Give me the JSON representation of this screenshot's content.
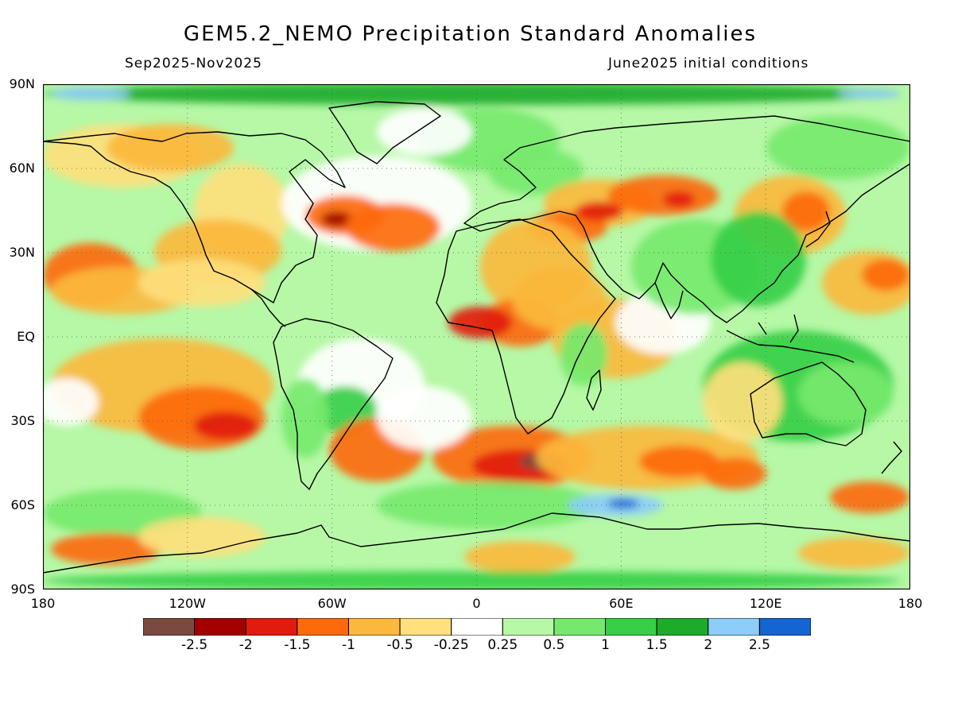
{
  "header": {
    "title": "GEM5.2_NEMO Precipitation Standard Anomalies",
    "period": "Sep2025-Nov2025",
    "init": "June2025 initial conditions"
  },
  "map": {
    "variable": "Precipitation Standard Anomalies",
    "lat_labels": [
      "90N",
      "60N",
      "30N",
      "EQ",
      "30S",
      "60S",
      "90S"
    ],
    "lon_labels": [
      "180",
      "120W",
      "60W",
      "0",
      "60E",
      "120E",
      "180"
    ]
  },
  "colorbar": {
    "colors": [
      "#7b4a3e",
      "#a30000",
      "#e11b0e",
      "#fd6a0b",
      "#fbb83c",
      "#fee07c",
      "#ffffff",
      "#b6f8a6",
      "#76e96d",
      "#36cf46",
      "#1eab2a",
      "#8ccdfa",
      "#1464d2"
    ],
    "labels": [
      "-2.5",
      "-2",
      "-1.5",
      "-1",
      "-0.5",
      "-0.25",
      "0.25",
      "0.5",
      "1",
      "1.5",
      "2",
      "2.5"
    ]
  }
}
